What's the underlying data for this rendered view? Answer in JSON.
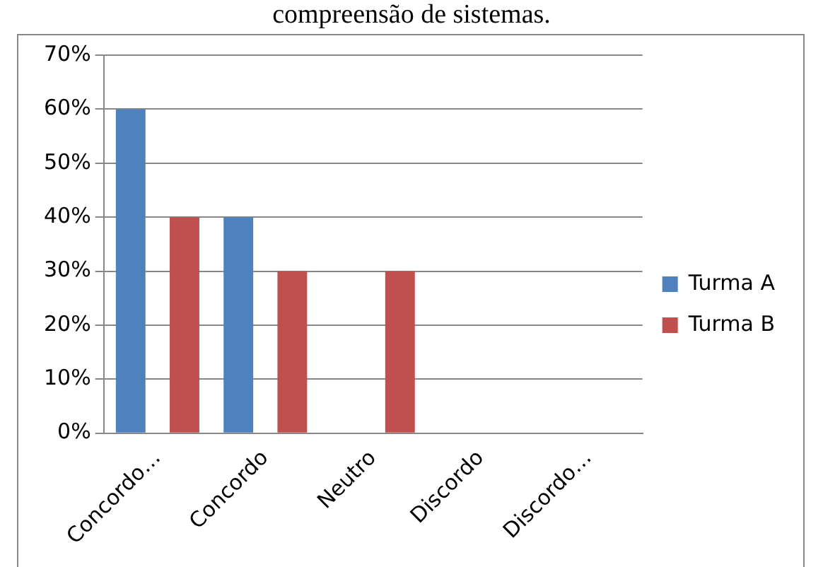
{
  "chart_data": {
    "type": "bar",
    "title": "compreensão de sistemas.",
    "categories": [
      "Concordo…",
      "Concordo",
      "Neutro",
      "Discordo",
      "Discordo…"
    ],
    "series": [
      {
        "name": "Turma A",
        "color": "#4f81bd",
        "values": [
          60,
          40,
          0,
          0,
          0
        ]
      },
      {
        "name": "Turma B",
        "color": "#c0504d",
        "values": [
          40,
          30,
          30,
          0,
          0
        ]
      }
    ],
    "ylim": [
      0,
      70
    ],
    "yticks": [
      {
        "value": 0,
        "label": "0%"
      },
      {
        "value": 10,
        "label": "10%"
      },
      {
        "value": 20,
        "label": "20%"
      },
      {
        "value": 30,
        "label": "30%"
      },
      {
        "value": 40,
        "label": "40%"
      },
      {
        "value": 50,
        "label": "50%"
      },
      {
        "value": 60,
        "label": "60%"
      },
      {
        "value": 70,
        "label": "70%"
      }
    ],
    "grid": "y",
    "legend": "right"
  }
}
